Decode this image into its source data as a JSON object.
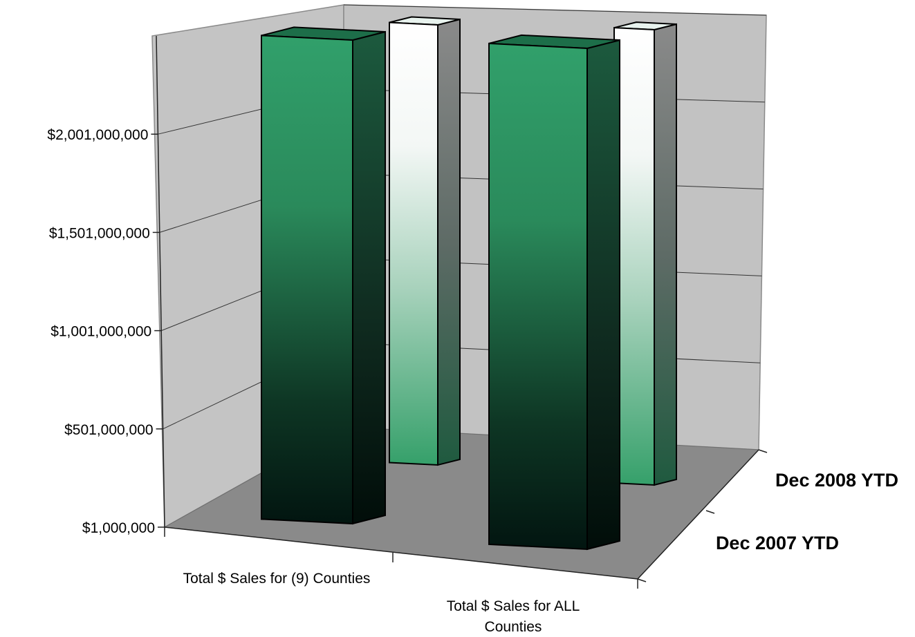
{
  "chart_data": {
    "type": "bar",
    "categories": [
      "Total $ Sales for (9) Counties",
      "Total $ Sales for ALL Counties"
    ],
    "category_label_lines": [
      [
        "Total $ Sales for (9) Counties"
      ],
      [
        "Total $ Sales for ALL",
        "Counties"
      ]
    ],
    "series": [
      {
        "name": "Dec 2007 YTD",
        "values": [
          2506000000,
          2615000000
        ]
      },
      {
        "name": "Dec 2008 YTD",
        "values": [
          2268000000,
          2309000000
        ]
      }
    ],
    "y_ticks": [
      "$1,000,000",
      "$501,000,000",
      "$1,001,000,000",
      "$1,501,000,000",
      "$2,001,000,000"
    ],
    "y_tick_values": [
      1000000,
      501000000,
      1001000000,
      1501000000,
      2001000000
    ],
    "ylim": [
      1000000,
      2501000000
    ],
    "grid": true,
    "three_d": true,
    "colors": {
      "front_series_face": "#2f9a66",
      "front_series_dark": "#021510",
      "back_series_top": "#ffffff",
      "back_series_bottom": "#35a06a",
      "wall": "#c3c3c3",
      "floor": "#8a8a8a"
    }
  }
}
